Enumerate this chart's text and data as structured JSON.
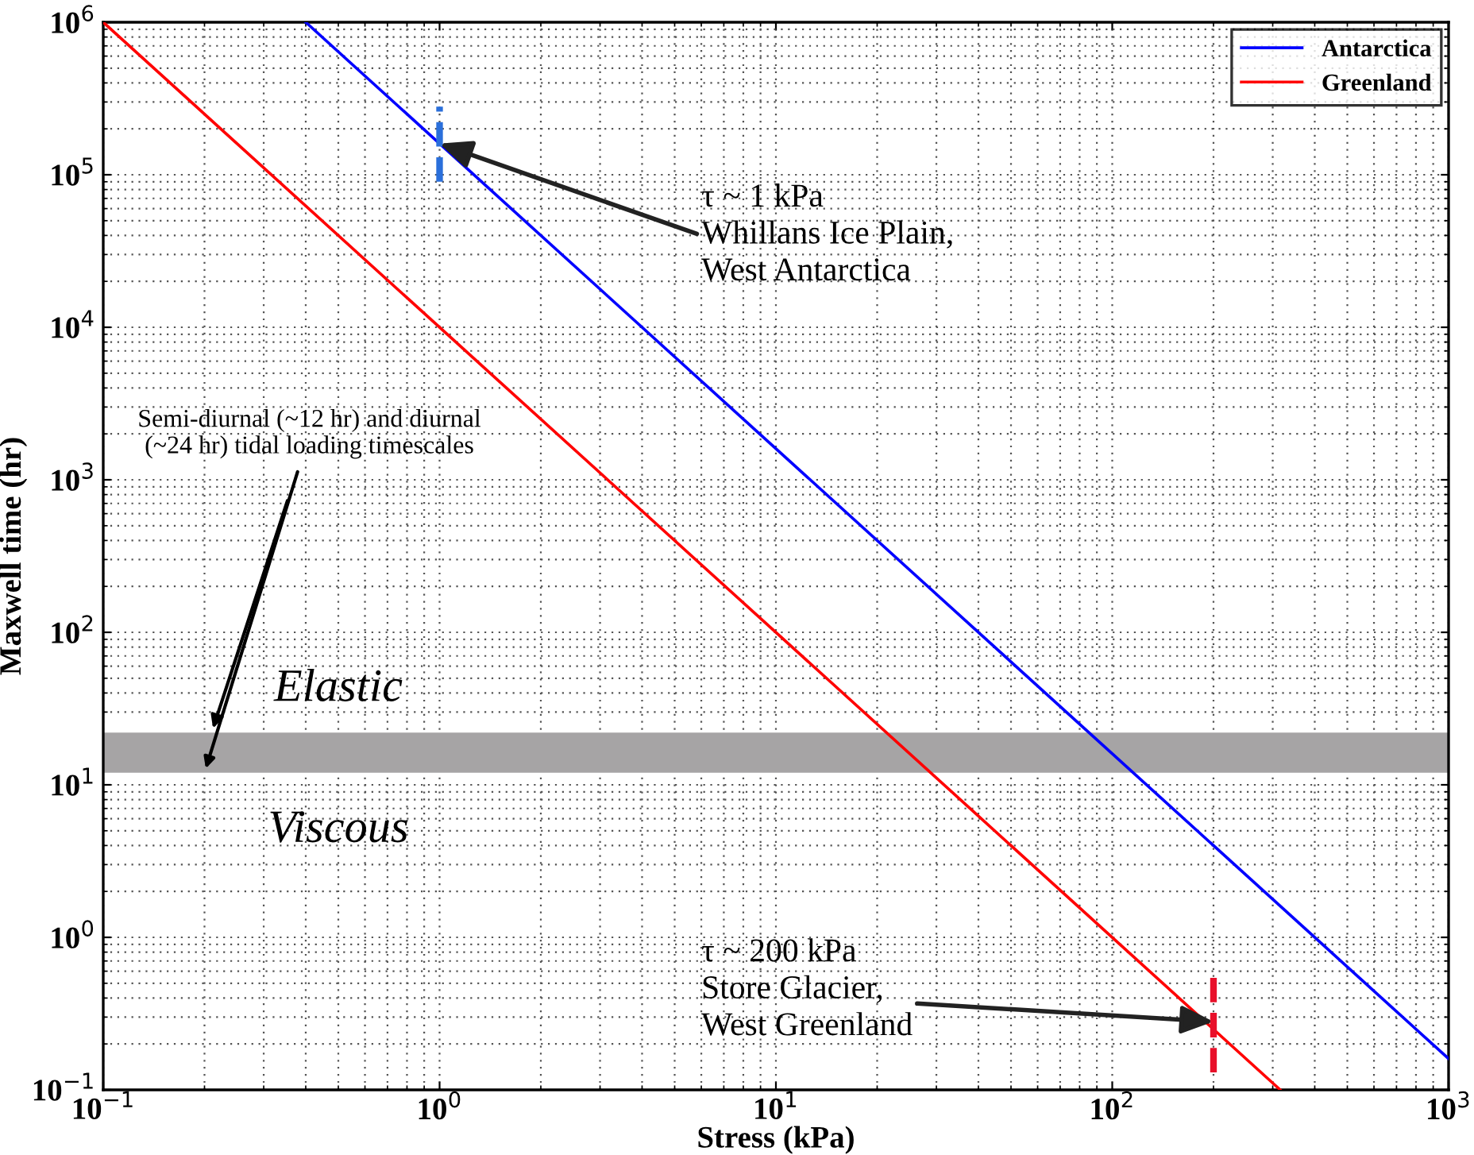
{
  "chart_data": {
    "type": "line",
    "xlabel": "Stress (kPa)",
    "ylabel": "Maxwell time (hr)",
    "log": "xy",
    "grid": true,
    "legend": "top right",
    "line_style": "solid",
    "marker": "none",
    "xlim": [
      0.1,
      1000
    ],
    "ylim": [
      0.1,
      1000000
    ],
    "xticks": [
      {
        "value": 0.1,
        "label": "10$^{−1}$"
      },
      {
        "value": 1,
        "label": "10$^{0}$"
      },
      {
        "value": 10,
        "label": "10$^{1}$"
      },
      {
        "value": 100,
        "label": "10$^{2}$"
      },
      {
        "value": 1000,
        "label": "10$^{3}$"
      }
    ],
    "yticks": [
      {
        "value": 0.1,
        "label": "10$^{−1}$"
      },
      {
        "value": 1,
        "label": "10$^{0}$"
      },
      {
        "value": 10,
        "label": "10$^{1}$"
      },
      {
        "value": 100,
        "label": "10$^{2}$"
      },
      {
        "value": 1000,
        "label": "10$^{3}$"
      },
      {
        "value": 10000,
        "label": "10$^{4}$"
      },
      {
        "value": 100000,
        "label": "10$^{5}$"
      },
      {
        "value": 1000000,
        "label": "10$^{6}$"
      }
    ],
    "series": [
      {
        "name": "Antarctica",
        "color": "#0000ff",
        "x": [
          0.4,
          1000
        ],
        "values": [
          1000000,
          0.16
        ]
      },
      {
        "name": "Greenland",
        "color": "#ff0000",
        "x": [
          0.1,
          316
        ],
        "values": [
          1000000,
          0.1
        ]
      },
      {
        "color": "#2a6fdb",
        "x": [
          1,
          1
        ],
        "values": [
          90000,
          280000
        ],
        "line_style": "dashed"
      },
      {
        "color": "#e8102a",
        "x": [
          200,
          200
        ],
        "values": [
          0.13,
          0.6
        ],
        "line_style": "dashed"
      }
    ],
    "bands": [
      {
        "axis": "y",
        "from": 12,
        "to": 22,
        "color": "#a6a4a5",
        "label": "Semi-diurnal (~12 hr) and diurnal\n(~24 hr) tidal loading timescales"
      }
    ],
    "annotations": [
      {
        "text": "τ ~ 1 kPa\nWhillans Ice Plain,\nWest Antarctica",
        "x": 1,
        "y": 160000
      },
      {
        "text": "τ ~ 200 kPa\nStore Glacier,\nWest Greenland",
        "x": 200,
        "y": 0.28
      },
      "Elastic",
      "Viscous"
    ]
  }
}
